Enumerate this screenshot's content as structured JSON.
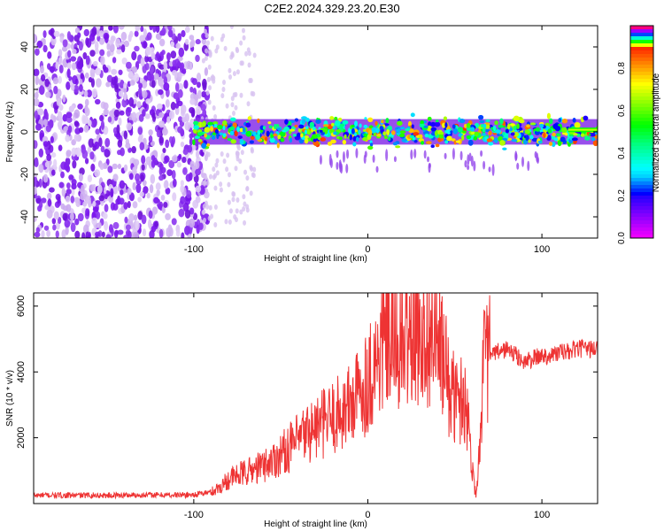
{
  "page": {
    "title": "C2E2.2024.329.23.20.E30"
  },
  "chart_data": [
    {
      "type": "heatmap",
      "title": "C2E2.2024.329.23.20.E30",
      "xlabel": "Height of straight line (km)",
      "ylabel": "Frequency (Hz)",
      "xlim": [
        -192,
        132
      ],
      "ylim": [
        -50,
        50
      ],
      "xticks": [
        -100,
        0,
        100
      ],
      "xtick_labels": [
        "-100",
        "0",
        "100"
      ],
      "yticks": [
        -40,
        -20,
        0,
        20,
        40
      ],
      "ytick_labels": [
        "-40",
        "-20",
        "0",
        "20",
        "40"
      ],
      "colorbar": {
        "label": "Normalized spectral amplitude",
        "range": [
          0,
          1
        ],
        "ticks": [
          0,
          0.2,
          0.4,
          0.6,
          0.8
        ],
        "tick_labels": [
          "0.0",
          "0.2",
          "0.4",
          "0.6",
          "0.8"
        ]
      },
      "regions": [
        {
          "x_range": [
            -192,
            -92
          ],
          "freq_range": [
            -50,
            50
          ],
          "level_range": [
            0.05,
            0.25
          ]
        },
        {
          "x_range": [
            -100,
            132
          ],
          "freq_range": [
            -8,
            8
          ],
          "level_range": [
            0.2,
            0.95
          ]
        }
      ],
      "grid": false
    },
    {
      "type": "line",
      "xlabel": "Height of straight line (km)",
      "ylabel": "SNR (10 * v/v)",
      "xlim": [
        -192,
        132
      ],
      "ylim": [
        0,
        6400
      ],
      "xticks": [
        -100,
        0,
        100
      ],
      "xtick_labels": [
        "-100",
        "0",
        "100"
      ],
      "yticks": [
        2000,
        4000,
        6000
      ],
      "ytick_labels": [
        "2000",
        "4000",
        "6000"
      ],
      "line_color": "#ee3333",
      "grid": false,
      "series": [
        {
          "x": [
            -192,
            -170,
            -150,
            -130,
            -110,
            -100,
            -90,
            -85,
            -80,
            -75,
            -70,
            -65,
            -60,
            -55,
            -50,
            -45,
            -40,
            -35,
            -30,
            -25,
            -20,
            -15,
            -10,
            -5,
            0,
            5,
            10,
            15,
            20,
            25,
            30,
            35,
            40,
            45,
            48,
            52,
            56,
            60,
            62,
            64,
            66,
            70,
            75,
            80,
            85,
            90,
            95,
            100,
            105,
            110,
            115,
            120,
            125,
            132
          ],
          "values": [
            250,
            250,
            250,
            260,
            260,
            270,
            350,
            500,
            750,
            850,
            950,
            1050,
            1150,
            1300,
            1500,
            1700,
            1900,
            2150,
            2300,
            2450,
            2600,
            2800,
            3000,
            3350,
            3800,
            4300,
            5000,
            4900,
            4800,
            5100,
            5300,
            5200,
            5000,
            4000,
            3300,
            3100,
            3300,
            1200,
            200,
            1500,
            4100,
            4500,
            4600,
            4700,
            4500,
            4300,
            4400,
            4500,
            4500,
            4600,
            4600,
            4700,
            4700,
            4700
          ]
        }
      ]
    }
  ]
}
